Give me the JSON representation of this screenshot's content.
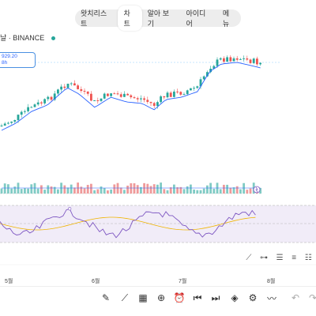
{
  "top_tabs": [
    {
      "label": "왓치리스트",
      "active": false
    },
    {
      "label": "차트",
      "active": true
    },
    {
      "label": "알아 보기",
      "active": false
    },
    {
      "label": "아이디어",
      "active": false
    },
    {
      "label": "메뉴",
      "active": false
    }
  ],
  "symbol": {
    "label": "날 · BINANCE",
    "status_color": "#26a69a"
  },
  "price_box": {
    "value": "929.20",
    "sub": "8h"
  },
  "x_axis_months": [
    "5월",
    "6월",
    "7월",
    "8월"
  ],
  "colors": {
    "up": "#26a69a",
    "down": "#ef5350",
    "ma": "#2962ff",
    "rsi": "#7e57c2",
    "rsi_ma": "#f0b400",
    "rsi_band": "#ede7f6"
  },
  "draw_tools": [
    "trendline-icon",
    "horizontal-ray-icon",
    "fib-icon",
    "pattern-icon",
    "text-icon"
  ],
  "bottom_toolbar": [
    "pen-icon",
    "indicator-icon",
    "layout-icon",
    "add-icon",
    "alarm-icon",
    "replay-back-icon",
    "replay-forward-icon",
    "layers-icon",
    "settings-icon",
    "ideas-icon",
    "undo-icon",
    "redo-icon"
  ]
}
